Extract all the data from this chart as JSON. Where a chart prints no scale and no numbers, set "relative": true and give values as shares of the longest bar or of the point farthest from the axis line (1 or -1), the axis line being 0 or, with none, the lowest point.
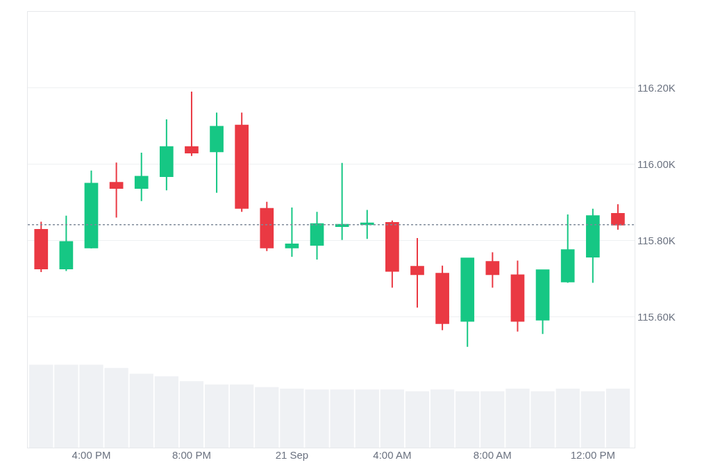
{
  "chart_data": [
    {
      "type": "candlestick",
      "x": [
        "--09-20T14:00",
        "--09-20T15:00",
        "--09-20T16:00",
        "--09-20T17:00",
        "--09-20T18:00",
        "--09-20T19:00",
        "--09-20T20:00",
        "--09-20T21:00",
        "--09-20T22:00",
        "--09-20T23:00",
        "--09-21T00:00",
        "--09-21T01:00",
        "--09-21T02:00",
        "--09-21T03:00",
        "--09-21T04:00",
        "--09-21T05:00",
        "--09-21T06:00",
        "--09-21T07:00",
        "--09-21T08:00",
        "--09-21T09:00",
        "--09-21T10:00",
        "--09-21T11:00",
        "--09-21T12:00",
        "--09-21T13:00"
      ],
      "ohlc": [
        [
          115829,
          115850,
          115718,
          115727
        ],
        [
          115727,
          115866,
          115721,
          115797
        ],
        [
          115782,
          115984,
          115780,
          115950
        ],
        [
          115952,
          116005,
          115861,
          115938
        ],
        [
          115938,
          116031,
          115904,
          115968
        ],
        [
          115969,
          116118,
          115932,
          116046
        ],
        [
          116046,
          116191,
          116022,
          116031
        ],
        [
          116034,
          116136,
          115926,
          116099
        ],
        [
          116102,
          116136,
          115876,
          115886
        ],
        [
          115884,
          115902,
          115773,
          115782
        ],
        [
          115782,
          115887,
          115758,
          115791
        ],
        [
          115789,
          115876,
          115751,
          115844
        ],
        [
          115838,
          116004,
          115802,
          115842
        ],
        [
          115843,
          115881,
          115805,
          115846
        ],
        [
          115847,
          115853,
          115677,
          115721
        ],
        [
          115732,
          115807,
          115625,
          115712
        ],
        [
          115714,
          115735,
          115566,
          115584
        ],
        [
          115590,
          115754,
          115522,
          115754
        ],
        [
          115745,
          115770,
          115677,
          115712
        ],
        [
          115710,
          115748,
          115562,
          115590
        ],
        [
          115593,
          115723,
          115556,
          115723
        ],
        [
          115693,
          115869,
          115690,
          115776
        ],
        [
          115758,
          115884,
          115690,
          115865
        ],
        [
          115871,
          115896,
          115829,
          115842
        ]
      ],
      "colors": [
        "#ea3943",
        "#16c784",
        "#16c784",
        "#ea3943",
        "#16c784",
        "#16c784",
        "#ea3943",
        "#16c784",
        "#ea3943",
        "#ea3943",
        "#16c784",
        "#16c784",
        "#16c784",
        "#16c784",
        "#ea3943",
        "#ea3943",
        "#ea3943",
        "#16c784",
        "#ea3943",
        "#ea3943",
        "#16c784",
        "#16c784",
        "#16c784",
        "#ea3943"
      ],
      "xlim": [
        "--09-20T13:28",
        "--09-21T13:40"
      ],
      "ylim": [
        115258,
        116400
      ],
      "yticks": [
        {
          "value": 115600,
          "label": "115.60K"
        },
        {
          "value": 115800,
          "label": "115.80K"
        },
        {
          "value": 116000,
          "label": "116.00K"
        },
        {
          "value": 116200,
          "label": "116.20K"
        }
      ],
      "ref_lines": [
        {
          "axis": "y",
          "value": 115842,
          "line_style": "dotted",
          "color": "#7f8a99"
        }
      ],
      "grid": "y",
      "tick_labels": "y"
    },
    {
      "type": "bar",
      "x": [
        "--09-20T14:00",
        "--09-20T15:00",
        "--09-20T16:00",
        "--09-20T17:00",
        "--09-20T18:00",
        "--09-20T19:00",
        "--09-20T20:00",
        "--09-20T21:00",
        "--09-20T22:00",
        "--09-20T23:00",
        "--09-21T00:00",
        "--09-21T01:00",
        "--09-21T02:00",
        "--09-21T03:00",
        "--09-21T04:00",
        "--09-21T05:00",
        "--09-21T06:00",
        "--09-21T07:00",
        "--09-21T08:00",
        "--09-21T09:00",
        "--09-21T10:00",
        "--09-21T11:00",
        "--09-21T12:00",
        "--09-21T13:00"
      ],
      "values": [
        1,
        1,
        1,
        0.96,
        0.89,
        0.86,
        0.8,
        0.76,
        0.76,
        0.73,
        0.71,
        0.7,
        0.7,
        0.7,
        0.7,
        0.68,
        0.7,
        0.68,
        0.68,
        0.71,
        0.68,
        0.71,
        0.68,
        0.71
      ],
      "color": "#eff1f4",
      "relative": true,
      "xlim": [
        "--09-20T13:28",
        "--09-21T13:40"
      ],
      "xticks": [
        {
          "value": "--09-20T16:00",
          "label": "4:00 PM"
        },
        {
          "value": "--09-20T20:00",
          "label": "8:00 PM"
        },
        {
          "value": "--09-21T00:00",
          "label": "21 Sep"
        },
        {
          "value": "--09-21T04:00",
          "label": "4:00 AM"
        },
        {
          "value": "--09-21T08:00",
          "label": "8:00 AM"
        },
        {
          "value": "--09-21T12:00",
          "label": "12:00 PM"
        }
      ],
      "tick_labels": "x"
    }
  ]
}
